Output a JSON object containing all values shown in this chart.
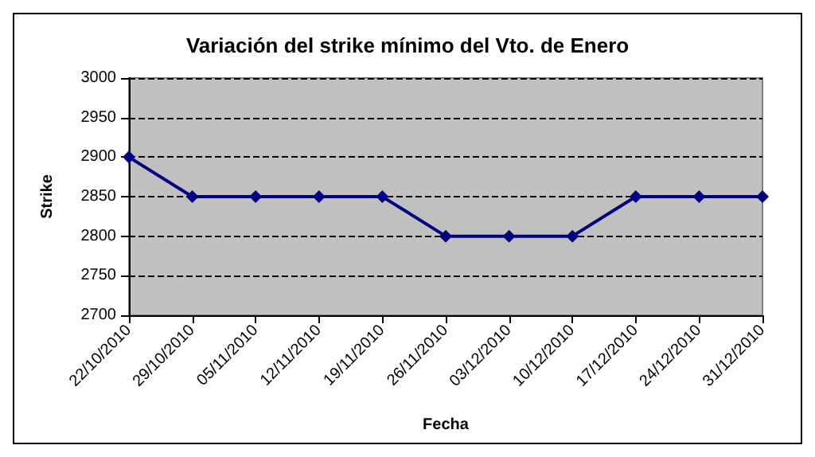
{
  "chart_data": {
    "type": "line",
    "title": "Variación del strike mínimo del Vto. de Enero",
    "xlabel": "Fecha",
    "ylabel": "Strike",
    "categories": [
      "22/10/2010",
      "29/10/2010",
      "05/11/2010",
      "12/11/2010",
      "19/11/2010",
      "26/11/2010",
      "03/12/2010",
      "10/12/2010",
      "17/12/2010",
      "24/12/2010",
      "31/12/2010"
    ],
    "series": [
      {
        "color": "#000080",
        "values": [
          2900,
          2850,
          2850,
          2850,
          2850,
          2800,
          2800,
          2800,
          2850,
          2850,
          2850
        ]
      }
    ],
    "ylim": [
      2700,
      3000
    ],
    "yticks": [
      2700,
      2750,
      2800,
      2850,
      2900,
      2950,
      3000
    ],
    "grid": "y",
    "marker": "diamond",
    "line_style": "solid"
  }
}
